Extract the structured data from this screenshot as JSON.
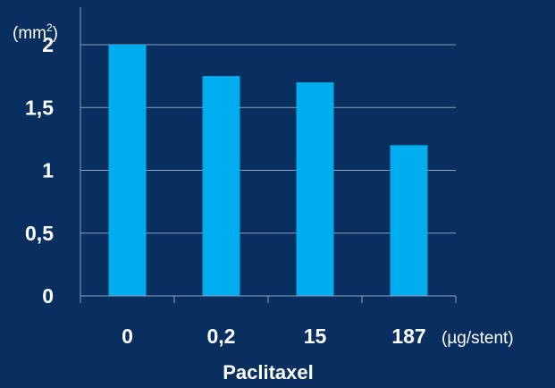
{
  "colors": {
    "background": "#082f5f",
    "bar": "#00aeef",
    "axis": "#8f9fb6",
    "text": "#ffffff"
  },
  "chart_data": {
    "type": "bar",
    "categories": [
      "0",
      "0,2",
      "15",
      "187"
    ],
    "values": [
      2.0,
      1.75,
      1.7,
      1.2
    ],
    "yticks": [
      "0",
      "0,5",
      "1",
      "1,5",
      "2"
    ],
    "ytick_values": [
      0,
      0.5,
      1,
      1.5,
      2
    ],
    "ylim": [
      0,
      2
    ],
    "y_unit_prefix": "(mm",
    "y_unit_sup": "2",
    "y_unit_suffix": ")",
    "x_unit": "(µg/stent)",
    "xlabel": "Paclitaxel",
    "title": "",
    "grid": true
  }
}
